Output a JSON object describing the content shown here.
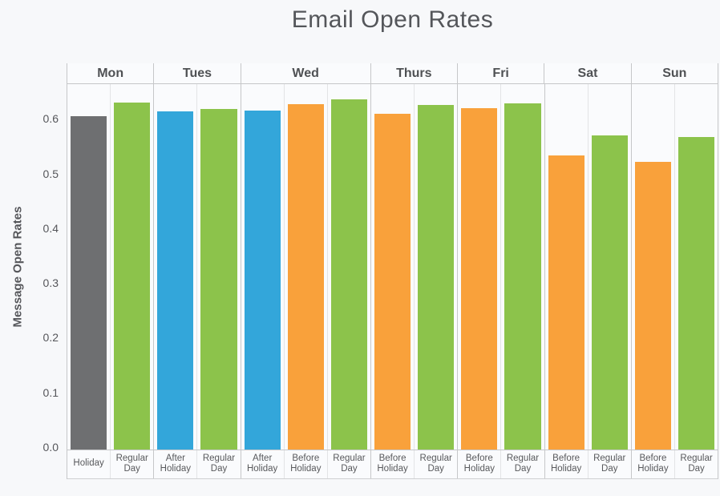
{
  "title": "Email Open Rates",
  "y_axis": {
    "label": "Message Open Rates",
    "tick_labels": [
      "0.0",
      "0.1",
      "0.2",
      "0.3",
      "0.4",
      "0.5",
      "0.6"
    ],
    "tick_values": [
      0.0,
      0.1,
      0.2,
      0.3,
      0.4,
      0.5,
      0.6
    ]
  },
  "chart_data": {
    "type": "bar",
    "title": "Email Open Rates",
    "xlabel": "",
    "ylabel": "Message Open Rates",
    "ylim": [
      0,
      0.668
    ],
    "grid": "vertical column separators only, no horizontal gridlines",
    "legend": "none",
    "colors": {
      "holiday": "#6e6f71",
      "regular": "#8cc34b",
      "after": "#33a6da",
      "before": "#f9a13b"
    },
    "groups": [
      {
        "day": "Mon",
        "bars": [
          {
            "label": "Holiday",
            "type": "holiday",
            "value": 0.61
          },
          {
            "label": "Regular Day",
            "type": "regular",
            "value": 0.635
          }
        ]
      },
      {
        "day": "Tues",
        "bars": [
          {
            "label": "After Holiday",
            "type": "after",
            "value": 0.618
          },
          {
            "label": "Regular Day",
            "type": "regular",
            "value": 0.622
          }
        ]
      },
      {
        "day": "Wed",
        "bars": [
          {
            "label": "After Holiday",
            "type": "after",
            "value": 0.62
          },
          {
            "label": "Before Holiday",
            "type": "before",
            "value": 0.632
          },
          {
            "label": "Regular Day",
            "type": "regular",
            "value": 0.64
          }
        ]
      },
      {
        "day": "Thurs",
        "bars": [
          {
            "label": "Before Holiday",
            "type": "before",
            "value": 0.614
          },
          {
            "label": "Regular Day",
            "type": "regular",
            "value": 0.63
          }
        ]
      },
      {
        "day": "Fri",
        "bars": [
          {
            "label": "Before Holiday",
            "type": "before",
            "value": 0.624
          },
          {
            "label": "Regular Day",
            "type": "regular",
            "value": 0.633
          }
        ]
      },
      {
        "day": "Sat",
        "bars": [
          {
            "label": "Before Holiday",
            "type": "before",
            "value": 0.538
          },
          {
            "label": "Regular Day",
            "type": "regular",
            "value": 0.574
          }
        ]
      },
      {
        "day": "Sun",
        "bars": [
          {
            "label": "Before Holiday",
            "type": "before",
            "value": 0.526
          },
          {
            "label": "Regular Day",
            "type": "regular",
            "value": 0.571
          }
        ]
      }
    ]
  }
}
